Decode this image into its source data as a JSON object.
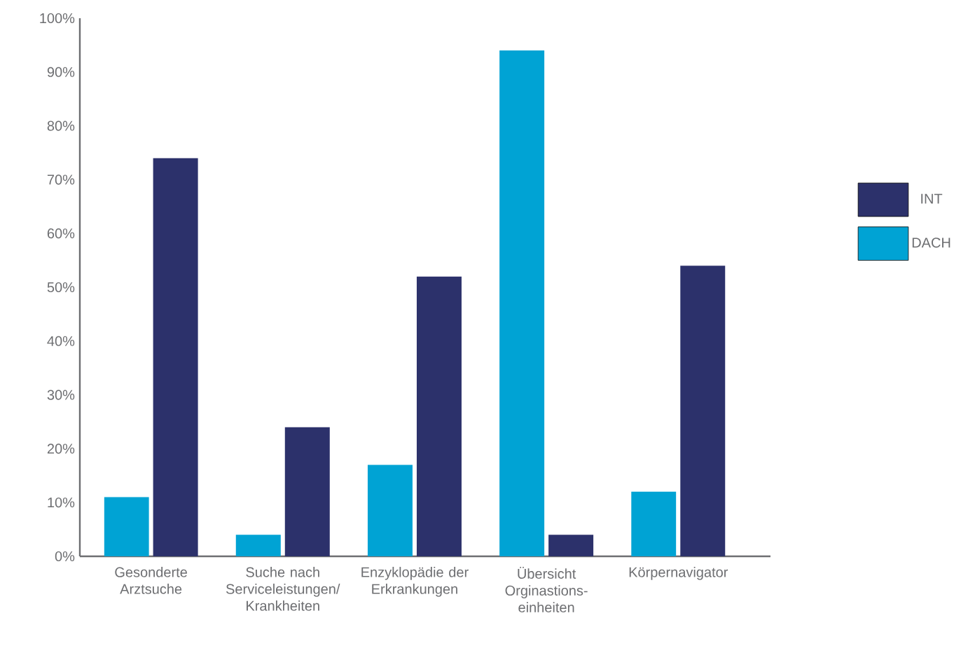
{
  "chart_data": {
    "type": "bar",
    "categories": [
      "Gesonderte Arztsuche",
      "Suche nach Serviceleistungen/ Krankheiten",
      "Enzyklopädie der Erkrankungen",
      "Übersicht Orginastions-einheiten",
      "Körpernavigator"
    ],
    "series": [
      {
        "name": "DACH",
        "color": "#00a3d4",
        "values": [
          11,
          4,
          17,
          94,
          12
        ]
      },
      {
        "name": "INT",
        "color": "#2c316b",
        "values": [
          74,
          24,
          52,
          4,
          54
        ]
      }
    ],
    "ylim": [
      0,
      100
    ],
    "yticks": [
      {
        "value": 0,
        "label": "0%"
      },
      {
        "value": 10,
        "label": "10%"
      },
      {
        "value": 20,
        "label": "20%"
      },
      {
        "value": 30,
        "label": "30%"
      },
      {
        "value": 40,
        "label": "40%"
      },
      {
        "value": 50,
        "label": "50%"
      },
      {
        "value": 60,
        "label": "60%"
      },
      {
        "value": 70,
        "label": "70%"
      },
      {
        "value": 80,
        "label": "80%"
      },
      {
        "value": 90,
        "label": "90%"
      },
      {
        "value": 100,
        "label": "100%"
      }
    ],
    "grid": false,
    "legend": "right"
  }
}
